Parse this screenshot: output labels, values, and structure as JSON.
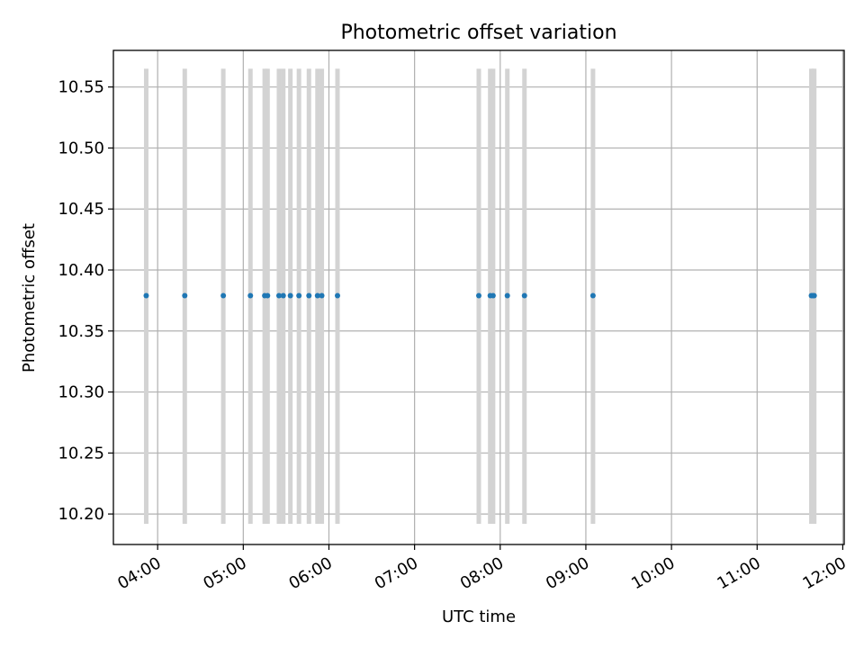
{
  "chart_data": {
    "type": "scatter",
    "title": "Photometric offset variation",
    "xlabel": "UTC time",
    "ylabel": "Photometric offset",
    "xlim": [
      "03:29",
      "12:01"
    ],
    "ylim": [
      10.175,
      10.58
    ],
    "xticks": [
      "04:00",
      "05:00",
      "06:00",
      "07:00",
      "08:00",
      "09:00",
      "10:00",
      "11:00",
      "12:00"
    ],
    "yticks": [
      "10.20",
      "10.25",
      "10.30",
      "10.35",
      "10.40",
      "10.45",
      "10.50",
      "10.55"
    ],
    "grid": true,
    "errorbar_range": [
      10.192,
      10.565
    ],
    "errorbar_color": "#d3d3d3",
    "point_color": "#1f77b4",
    "x": [
      "03:52",
      "04:19",
      "04:46",
      "05:05",
      "05:15",
      "05:17",
      "05:25",
      "05:28",
      "05:33",
      "05:39",
      "05:46",
      "05:52",
      "05:55",
      "06:06",
      "07:45",
      "07:53",
      "07:55",
      "08:05",
      "08:17",
      "09:05",
      "11:38",
      "11:39",
      "11:40"
    ],
    "y": [
      10.379,
      10.379,
      10.379,
      10.379,
      10.379,
      10.379,
      10.379,
      10.379,
      10.379,
      10.379,
      10.379,
      10.379,
      10.379,
      10.379,
      10.379,
      10.379,
      10.379,
      10.379,
      10.379,
      10.379,
      10.379,
      10.379,
      10.379
    ]
  }
}
